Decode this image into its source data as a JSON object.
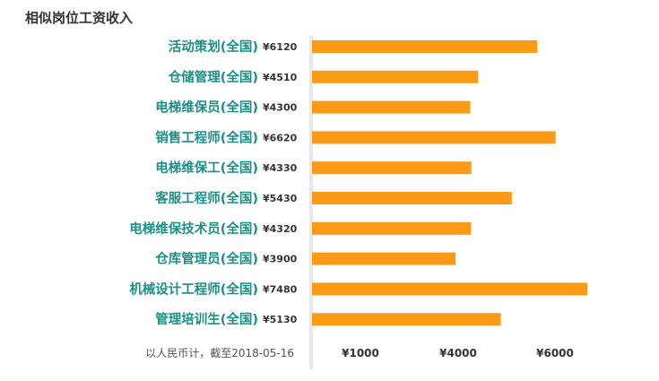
{
  "title": "相似岗位工资收入",
  "chart_data": {
    "type": "bar",
    "orientation": "horizontal",
    "categories": [
      "活动策划(全国)",
      "仓储管理(全国)",
      "电梯维保员(全国)",
      "销售工程师(全国)",
      "电梯维保工(全国)",
      "客服工程师(全国)",
      "电梯维保技术员(全国)",
      "仓库管理员(全国)",
      "机械设计工程师(全国)",
      "管理培训生(全国)"
    ],
    "values": [
      6120,
      4510,
      4300,
      6620,
      4330,
      5430,
      4320,
      3900,
      7480,
      5130
    ],
    "value_labels": [
      "¥6120",
      "¥4510",
      "¥4300",
      "¥6620",
      "¥4330",
      "¥5430",
      "¥4320",
      "¥3900",
      "¥7480",
      "¥5130"
    ],
    "x_ticks": [
      {
        "value": 1000,
        "label": "¥1000"
      },
      {
        "value": 4000,
        "label": "¥4000"
      },
      {
        "value": 6000,
        "label": "¥6000"
      }
    ],
    "bar_color": "#fb9a16",
    "label_color": "#1a9087",
    "axis_color": "#e8e8e8",
    "footnote": "以人民币计，截至2018-05-16"
  }
}
